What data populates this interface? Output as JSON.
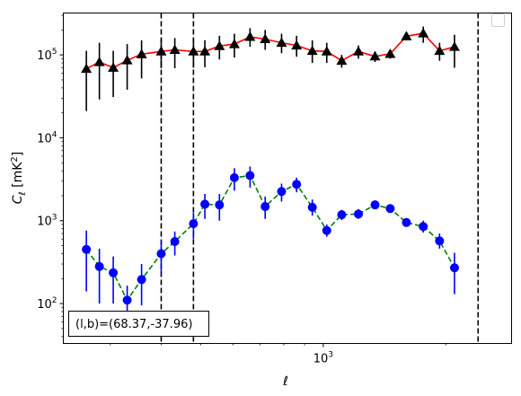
{
  "chart_data": {
    "type": "line",
    "xscale": "log",
    "yscale": "log",
    "xlabel": "ℓ",
    "ylabel": "C_ℓ [mK²]",
    "xlim": [
      230,
      2900
    ],
    "ylim": [
      33,
      320000
    ],
    "x_tick_labels": [
      {
        "value": 1000,
        "base": "10",
        "exp": "3"
      }
    ],
    "y_tick_labels": [
      {
        "value": 100,
        "base": "10",
        "exp": "2"
      },
      {
        "value": 1000,
        "base": "10",
        "exp": "3"
      },
      {
        "value": 10000,
        "base": "10",
        "exp": "4"
      },
      {
        "value": 100000,
        "base": "10",
        "exp": "5"
      }
    ],
    "annotation": "(l,b)=(68.37,-37.96)",
    "vlines": [
      400,
      480,
      2400
    ],
    "legend": {
      "placement": "top-right",
      "entries": []
    },
    "series": [
      {
        "color": "#000000",
        "line_color": "#ff0000",
        "line_style": "solid",
        "marker": "triangle",
        "points": [
          {
            "x": 262,
            "y": 68000,
            "lo": 21000,
            "hi": 112000
          },
          {
            "x": 282,
            "y": 82000,
            "lo": 29000,
            "hi": 140000
          },
          {
            "x": 305,
            "y": 70000,
            "lo": 31000,
            "hi": 112000
          },
          {
            "x": 330,
            "y": 86000,
            "lo": 38000,
            "hi": 135000
          },
          {
            "x": 358,
            "y": 102000,
            "lo": 52000,
            "hi": 150000
          },
          {
            "x": 400,
            "y": 110000,
            "lo": 69000,
            "hi": 155000
          },
          {
            "x": 432,
            "y": 115000,
            "lo": 69000,
            "hi": 160000
          },
          {
            "x": 480,
            "y": 110000,
            "lo": 70000,
            "hi": 155000
          },
          {
            "x": 512,
            "y": 110000,
            "lo": 71000,
            "hi": 150000
          },
          {
            "x": 556,
            "y": 128000,
            "lo": 88000,
            "hi": 170000
          },
          {
            "x": 605,
            "y": 135000,
            "lo": 93000,
            "hi": 180000
          },
          {
            "x": 661,
            "y": 165000,
            "lo": 125000,
            "hi": 210000
          },
          {
            "x": 720,
            "y": 155000,
            "lo": 115000,
            "hi": 200000
          },
          {
            "x": 790,
            "y": 140000,
            "lo": 105000,
            "hi": 180000
          },
          {
            "x": 860,
            "y": 130000,
            "lo": 95000,
            "hi": 170000
          },
          {
            "x": 940,
            "y": 112000,
            "lo": 80000,
            "hi": 150000
          },
          {
            "x": 1020,
            "y": 110000,
            "lo": 80000,
            "hi": 140000
          },
          {
            "x": 1110,
            "y": 85000,
            "lo": 70000,
            "hi": 100000
          },
          {
            "x": 1220,
            "y": 110000,
            "lo": 90000,
            "hi": 130000
          },
          {
            "x": 1340,
            "y": 96000,
            "lo": 82000,
            "hi": 110000
          },
          {
            "x": 1460,
            "y": 103000,
            "lo": 90000,
            "hi": 115000
          },
          {
            "x": 1600,
            "y": 168000,
            "lo": 150000,
            "hi": 185000
          },
          {
            "x": 1760,
            "y": 182000,
            "lo": 140000,
            "hi": 220000
          },
          {
            "x": 1930,
            "y": 112000,
            "lo": 85000,
            "hi": 140000
          },
          {
            "x": 2100,
            "y": 125000,
            "lo": 70000,
            "hi": 175000
          }
        ]
      },
      {
        "color": "#0000ff",
        "line_color": "#008000",
        "line_style": "dashed",
        "marker": "circle",
        "points": [
          {
            "x": 262,
            "y": 450,
            "lo": 140,
            "hi": 760
          },
          {
            "x": 282,
            "y": 280,
            "lo": 100,
            "hi": 460
          },
          {
            "x": 305,
            "y": 235,
            "lo": 100,
            "hi": 370
          },
          {
            "x": 330,
            "y": 110,
            "lo": 55,
            "hi": 165
          },
          {
            "x": 358,
            "y": 195,
            "lo": 95,
            "hi": 300
          },
          {
            "x": 400,
            "y": 400,
            "lo": 230,
            "hi": 580
          },
          {
            "x": 432,
            "y": 560,
            "lo": 380,
            "hi": 740
          },
          {
            "x": 480,
            "y": 920,
            "lo": 600,
            "hi": 1250
          },
          {
            "x": 512,
            "y": 1580,
            "lo": 1050,
            "hi": 2100
          },
          {
            "x": 556,
            "y": 1550,
            "lo": 1000,
            "hi": 2100
          },
          {
            "x": 605,
            "y": 3300,
            "lo": 2300,
            "hi": 4300
          },
          {
            "x": 661,
            "y": 3500,
            "lo": 2500,
            "hi": 4500
          },
          {
            "x": 720,
            "y": 1480,
            "lo": 1050,
            "hi": 1950
          },
          {
            "x": 790,
            "y": 2250,
            "lo": 1700,
            "hi": 2800
          },
          {
            "x": 860,
            "y": 2750,
            "lo": 2200,
            "hi": 3300
          },
          {
            "x": 940,
            "y": 1450,
            "lo": 1150,
            "hi": 1800
          },
          {
            "x": 1020,
            "y": 760,
            "lo": 640,
            "hi": 900
          },
          {
            "x": 1110,
            "y": 1180,
            "lo": 1020,
            "hi": 1350
          },
          {
            "x": 1220,
            "y": 1200,
            "lo": 1050,
            "hi": 1380
          },
          {
            "x": 1340,
            "y": 1550,
            "lo": 1400,
            "hi": 1720
          },
          {
            "x": 1460,
            "y": 1400,
            "lo": 1280,
            "hi": 1550
          },
          {
            "x": 1600,
            "y": 950,
            "lo": 870,
            "hi": 1040
          },
          {
            "x": 1760,
            "y": 850,
            "lo": 720,
            "hi": 1000
          },
          {
            "x": 1930,
            "y": 570,
            "lo": 460,
            "hi": 700
          },
          {
            "x": 2100,
            "y": 270,
            "lo": 130,
            "hi": 410
          }
        ]
      }
    ]
  }
}
